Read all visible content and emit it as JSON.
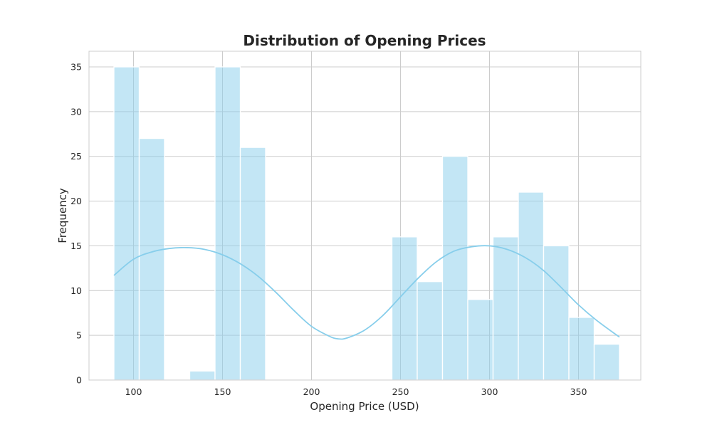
{
  "chart_data": {
    "type": "bar",
    "title": "Distribution of Opening Prices",
    "xlabel": "Opening Price (USD)",
    "ylabel": "Frequency",
    "xlim": [
      75,
      385
    ],
    "ylim": [
      0,
      36.75
    ],
    "xticks": [
      100,
      150,
      200,
      250,
      300,
      350
    ],
    "yticks": [
      0,
      5,
      10,
      15,
      20,
      25,
      30,
      35
    ],
    "grid": true,
    "bar_color": "#87CEEB",
    "bar_opacity": 0.5,
    "kde_color": "#87CEEB",
    "bins": [
      {
        "x0": 89.0,
        "x1": 103.2,
        "count": 35
      },
      {
        "x0": 103.2,
        "x1": 117.4,
        "count": 27
      },
      {
        "x0": 117.4,
        "x1": 131.6,
        "count": 0
      },
      {
        "x0": 131.6,
        "x1": 145.8,
        "count": 1
      },
      {
        "x0": 145.8,
        "x1": 160.0,
        "count": 35
      },
      {
        "x0": 160.0,
        "x1": 174.2,
        "count": 26
      },
      {
        "x0": 174.2,
        "x1": 188.4,
        "count": 0
      },
      {
        "x0": 188.4,
        "x1": 202.6,
        "count": 0
      },
      {
        "x0": 202.6,
        "x1": 216.8,
        "count": 0
      },
      {
        "x0": 216.8,
        "x1": 231.0,
        "count": 0
      },
      {
        "x0": 231.0,
        "x1": 245.2,
        "count": 0
      },
      {
        "x0": 245.2,
        "x1": 259.4,
        "count": 16
      },
      {
        "x0": 259.4,
        "x1": 273.6,
        "count": 11
      },
      {
        "x0": 273.6,
        "x1": 287.8,
        "count": 25
      },
      {
        "x0": 287.8,
        "x1": 302.0,
        "count": 9
      },
      {
        "x0": 302.0,
        "x1": 316.2,
        "count": 16
      },
      {
        "x0": 316.2,
        "x1": 330.4,
        "count": 21
      },
      {
        "x0": 330.4,
        "x1": 344.6,
        "count": 15
      },
      {
        "x0": 344.6,
        "x1": 358.8,
        "count": 7
      },
      {
        "x0": 358.8,
        "x1": 373.0,
        "count": 4
      }
    ],
    "kde_curve": {
      "x": [
        89,
        100,
        110,
        120,
        130,
        140,
        150,
        160,
        170,
        180,
        190,
        200,
        210,
        215,
        220,
        230,
        240,
        250,
        260,
        270,
        280,
        290,
        300,
        310,
        320,
        330,
        340,
        350,
        360,
        373
      ],
      "y": [
        11.7,
        13.5,
        14.3,
        14.7,
        14.8,
        14.6,
        14.0,
        13.0,
        11.6,
        9.8,
        7.8,
        6.0,
        4.9,
        4.6,
        4.7,
        5.6,
        7.2,
        9.3,
        11.4,
        13.2,
        14.4,
        14.9,
        15.0,
        14.6,
        13.7,
        12.3,
        10.4,
        8.4,
        6.7,
        4.8
      ]
    }
  }
}
